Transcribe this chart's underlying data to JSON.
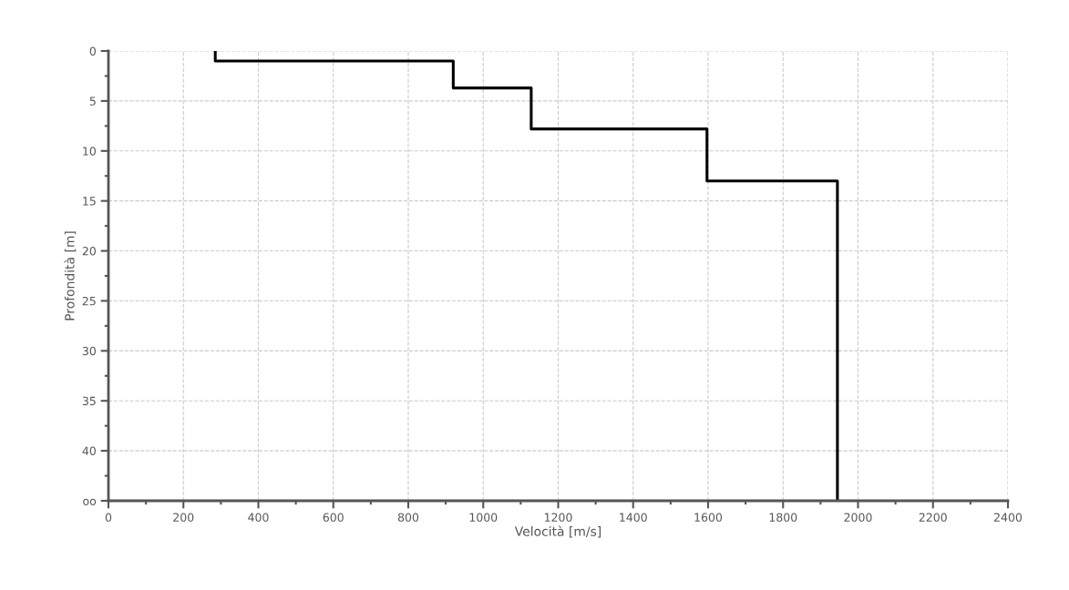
{
  "chart_data": {
    "type": "line",
    "xlabel": "Velocità [m/s]",
    "ylabel": "Profondità [m]",
    "x": [
      285,
      285,
      920,
      920,
      1128,
      1128,
      1597,
      1597,
      1945,
      1945
    ],
    "series": [
      {
        "color": "#000000",
        "values": [
          0,
          1,
          1,
          3.7,
          3.7,
          7.8,
          7.8,
          13,
          13,
          45
        ]
      }
    ],
    "xlim": [
      0,
      2400
    ],
    "xticks": [
      0,
      200,
      400,
      600,
      800,
      1000,
      1200,
      1400,
      1600,
      1800,
      2000,
      2200,
      2400
    ],
    "ylim": [
      45,
      0
    ],
    "yticks": [
      0,
      5,
      10,
      15,
      20,
      25,
      30,
      35,
      40,
      {
        "value": 45,
        "label": "oo"
      }
    ],
    "grid": true,
    "line_style": "solid",
    "marker": "none"
  }
}
